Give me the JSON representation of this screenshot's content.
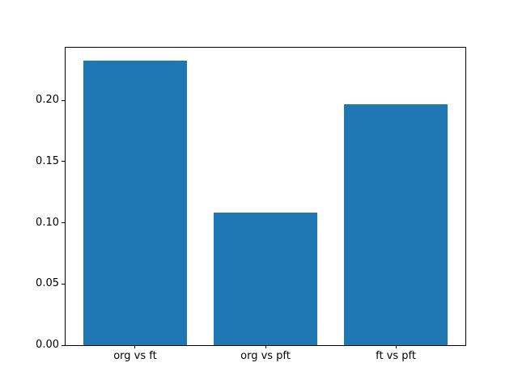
{
  "chart_data": {
    "type": "bar",
    "categories": [
      "org vs ft",
      "org vs pft",
      "ft vs pft"
    ],
    "values": [
      0.2325,
      0.108,
      0.1965
    ],
    "title": "",
    "xlabel": "",
    "ylabel": "",
    "ylim": [
      0,
      0.2436
    ],
    "xlim": [
      -0.54,
      2.54
    ],
    "yticks": [
      0.0,
      0.05,
      0.1,
      0.15,
      0.2
    ],
    "ytick_labels": [
      "0.00",
      "0.05",
      "0.10",
      "0.15",
      "0.20"
    ],
    "bar_width": 0.8,
    "bar_color": "#1f77b4",
    "axis_color": "#000000",
    "background_color": "#ffffff",
    "grid": false,
    "legend": null
  }
}
